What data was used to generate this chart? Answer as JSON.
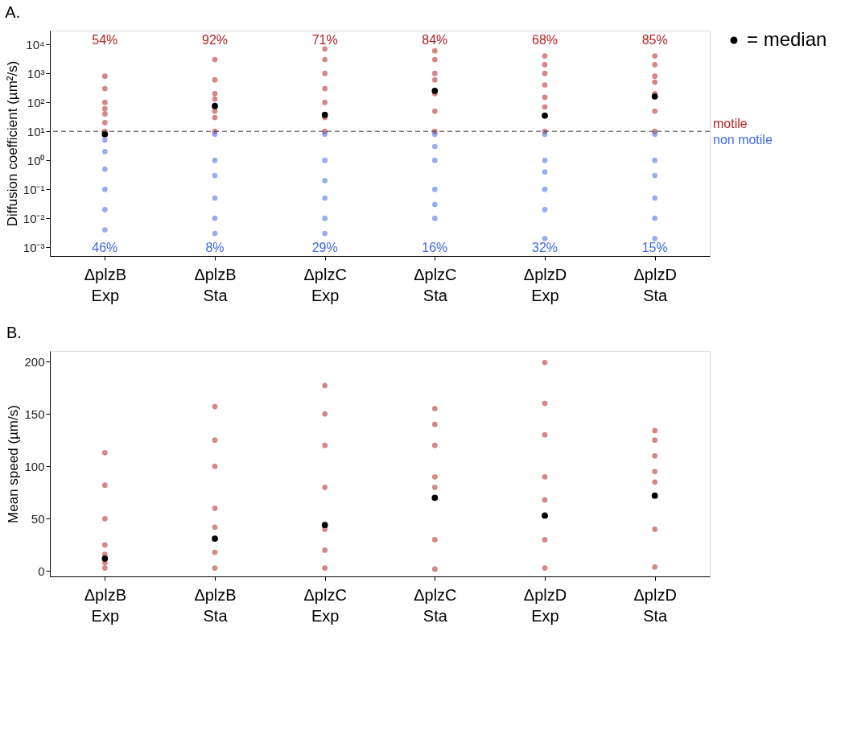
{
  "chart_data": [
    {
      "type": "scatter",
      "title": "A.",
      "ylabel": "Diffusion coefficient (µm²/s)",
      "categories": [
        "ΔplzB Exp",
        "ΔplzB Sta",
        "ΔplzC Exp",
        "ΔplzC Sta",
        "ΔplzD Exp",
        "ΔplzD Sta"
      ],
      "log": true,
      "ylim": [
        0.0005,
        30000
      ],
      "yticks": [
        {
          "value": 0.001,
          "label": "10⁻³"
        },
        {
          "value": 0.01,
          "label": "10⁻²"
        },
        {
          "value": 0.1,
          "label": "10⁻¹"
        },
        {
          "value": 1,
          "label": "10⁰"
        },
        {
          "value": 10,
          "label": "10¹"
        },
        {
          "value": 100,
          "label": "10²"
        },
        {
          "value": 1000,
          "label": "10³"
        },
        {
          "value": 10000,
          "label": "10⁴"
        }
      ],
      "series": [
        {
          "color": "#b22222",
          "x": [
            "ΔplzB Exp",
            "ΔplzB Exp",
            "ΔplzB Exp",
            "ΔplzB Exp",
            "ΔplzB Exp",
            "ΔplzB Exp",
            "ΔplzB Exp",
            "ΔplzB Sta",
            "ΔplzB Sta",
            "ΔplzB Sta",
            "ΔplzB Sta",
            "ΔplzB Sta",
            "ΔplzB Sta",
            "ΔplzB Sta",
            "ΔplzC Exp",
            "ΔplzC Exp",
            "ΔplzC Exp",
            "ΔplzC Exp",
            "ΔplzC Exp",
            "ΔplzC Exp",
            "ΔplzC Exp",
            "ΔplzC Sta",
            "ΔplzC Sta",
            "ΔplzC Sta",
            "ΔplzC Sta",
            "ΔplzC Sta",
            "ΔplzC Sta",
            "ΔplzC Sta",
            "ΔplzD Exp",
            "ΔplzD Exp",
            "ΔplzD Exp",
            "ΔplzD Exp",
            "ΔplzD Exp",
            "ΔplzD Exp",
            "ΔplzD Exp",
            "ΔplzD Sta",
            "ΔplzD Sta",
            "ΔplzD Sta",
            "ΔplzD Sta",
            "ΔplzD Sta",
            "ΔplzD Sta",
            "ΔplzD Sta"
          ],
          "values": [
            10,
            20,
            40,
            60,
            100,
            300,
            800,
            10,
            30,
            50,
            130,
            200,
            600,
            3000,
            10,
            30,
            100,
            300,
            1000,
            3000,
            7000,
            10,
            50,
            200,
            600,
            1000,
            3000,
            6000,
            10,
            70,
            150,
            400,
            1000,
            2000,
            4000,
            10,
            50,
            200,
            500,
            800,
            2000,
            4000
          ]
        },
        {
          "color": "#4169e1",
          "x": [
            "ΔplzB Exp",
            "ΔplzB Exp",
            "ΔplzB Exp",
            "ΔplzB Exp",
            "ΔplzB Exp",
            "ΔplzB Exp",
            "ΔplzB Sta",
            "ΔplzB Sta",
            "ΔplzB Sta",
            "ΔplzB Sta",
            "ΔplzB Sta",
            "ΔplzB Sta",
            "ΔplzC Exp",
            "ΔplzC Exp",
            "ΔplzC Exp",
            "ΔplzC Exp",
            "ΔplzC Exp",
            "ΔplzC Exp",
            "ΔplzC Sta",
            "ΔplzC Sta",
            "ΔplzC Sta",
            "ΔplzC Sta",
            "ΔplzC Sta",
            "ΔplzC Sta",
            "ΔplzD Exp",
            "ΔplzD Exp",
            "ΔplzD Exp",
            "ΔplzD Exp",
            "ΔplzD Exp",
            "ΔplzD Exp",
            "ΔplzD Sta",
            "ΔplzD Sta",
            "ΔplzD Sta",
            "ΔplzD Sta",
            "ΔplzD Sta",
            "ΔplzD Sta"
          ],
          "values": [
            5,
            2,
            0.5,
            0.1,
            0.02,
            0.004,
            8,
            1,
            0.3,
            0.05,
            0.01,
            0.003,
            8,
            1,
            0.2,
            0.05,
            0.01,
            0.003,
            8,
            3,
            1,
            0.1,
            0.03,
            0.01,
            8,
            1,
            0.4,
            0.1,
            0.02,
            0.002,
            8,
            1,
            0.3,
            0.05,
            0.01,
            0.002
          ]
        },
        {
          "name": "= median",
          "color": "#000000",
          "x": [
            "ΔplzB Exp",
            "ΔplzB Sta",
            "ΔplzC Exp",
            "ΔplzC Sta",
            "ΔplzD Exp",
            "ΔplzD Sta"
          ],
          "values": [
            8,
            75,
            37,
            250,
            35,
            160
          ]
        }
      ],
      "ref_lines": [
        {
          "axis": "y",
          "value": 10,
          "line_style": "dashed",
          "color": "#333333"
        }
      ],
      "annotations": [
        "54%",
        "92%",
        "71%",
        "84%",
        "68%",
        "85%",
        "46%",
        "8%",
        "29%",
        "16%",
        "32%",
        "15%",
        "motile",
        "non motile"
      ],
      "legend": "top right",
      "grid": false
    },
    {
      "type": "scatter",
      "title": "B.",
      "ylabel": "Mean speed (µm/s)",
      "categories": [
        "ΔplzB Exp",
        "ΔplzB Sta",
        "ΔplzC Exp",
        "ΔplzC Sta",
        "ΔplzD Exp",
        "ΔplzD Sta"
      ],
      "ylim": [
        -5,
        210
      ],
      "yticks": [
        0,
        50,
        100,
        150,
        200
      ],
      "series": [
        {
          "color": "#b22222",
          "x": [
            "ΔplzB Exp",
            "ΔplzB Exp",
            "ΔplzB Exp",
            "ΔplzB Exp",
            "ΔplzB Exp",
            "ΔplzB Exp",
            "ΔplzB Exp",
            "ΔplzB Sta",
            "ΔplzB Sta",
            "ΔplzB Sta",
            "ΔplzB Sta",
            "ΔplzB Sta",
            "ΔplzB Sta",
            "ΔplzB Sta",
            "ΔplzC Exp",
            "ΔplzC Exp",
            "ΔplzC Exp",
            "ΔplzC Exp",
            "ΔplzC Exp",
            "ΔplzC Exp",
            "ΔplzC Exp",
            "ΔplzC Sta",
            "ΔplzC Sta",
            "ΔplzC Sta",
            "ΔplzC Sta",
            "ΔplzC Sta",
            "ΔplzC Sta",
            "ΔplzC Sta",
            "ΔplzD Exp",
            "ΔplzD Exp",
            "ΔplzD Exp",
            "ΔplzD Exp",
            "ΔplzD Exp",
            "ΔplzD Exp",
            "ΔplzD Exp",
            "ΔplzD Sta",
            "ΔplzD Sta",
            "ΔplzD Sta",
            "ΔplzD Sta",
            "ΔplzD Sta",
            "ΔplzD Sta",
            "ΔplzD Sta"
          ],
          "values": [
            3,
            8,
            16,
            25,
            50,
            82,
            113,
            3,
            18,
            42,
            60,
            100,
            125,
            157,
            3,
            20,
            40,
            80,
            120,
            150,
            177,
            2,
            30,
            80,
            90,
            120,
            140,
            155,
            3,
            30,
            68,
            90,
            130,
            160,
            199,
            4,
            40,
            85,
            95,
            110,
            125,
            134
          ]
        },
        {
          "color": "#000000",
          "x": [
            "ΔplzB Exp",
            "ΔplzB Sta",
            "ΔplzC Exp",
            "ΔplzC Sta",
            "ΔplzD Exp",
            "ΔplzD Sta"
          ],
          "values": [
            12,
            31,
            44,
            70,
            53,
            72
          ]
        }
      ],
      "legend": false,
      "grid": false
    }
  ]
}
